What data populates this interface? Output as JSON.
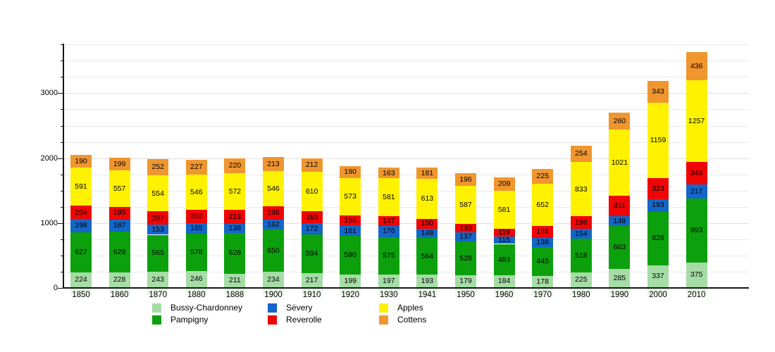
{
  "chart_data": {
    "type": "bar",
    "stacked": true,
    "title": "",
    "xlabel": "",
    "ylabel": "",
    "ylim": [
      0,
      3800
    ],
    "yticks": [
      0,
      1000,
      2000,
      3000
    ],
    "minor_tick_step": 250,
    "grid": true,
    "legend_position": "bottom",
    "categories": [
      "1850",
      "1860",
      "1870",
      "1880",
      "1888",
      "1900",
      "1910",
      "1920",
      "1930",
      "1941",
      "1950",
      "1960",
      "1970",
      "1980",
      "1990",
      "2000",
      "2010"
    ],
    "series": [
      {
        "name": "Bussy-Chardonney",
        "color": "#a6dca6",
        "values": [
          224,
          228,
          243,
          246,
          211,
          234,
          217,
          199,
          197,
          193,
          179,
          184,
          178,
          225,
          285,
          337,
          375
        ]
      },
      {
        "name": "Pampigny",
        "color": "#0ca10c",
        "values": [
          627,
          629,
          565,
          578,
          628,
          650,
          594,
          590,
          575,
          564,
          528,
          483,
          445,
          518,
          663,
          828,
          993
        ]
      },
      {
        "name": "Sévery",
        "color": "#1466c8",
        "values": [
          198,
          187,
          153,
          165,
          138,
          162,
          172,
          161,
          176,
          148,
          137,
          115,
          138,
          154,
          148,
          193,
          217
        ]
      },
      {
        "name": "Reverolle",
        "color": "#f00505",
        "values": [
          204,
          195,
          207,
          202,
          213,
          198,
          183,
          155,
          147,
          150,
          133,
          119,
          181,
          196,
          311,
          323,
          348
        ]
      },
      {
        "name": "Apples",
        "color": "#fff200",
        "values": [
          591,
          557,
          554,
          546,
          572,
          546,
          610,
          573,
          581,
          613,
          587,
          581,
          652,
          833,
          1021,
          1159,
          1257
        ]
      },
      {
        "name": "Cottens",
        "color": "#f0962f",
        "values": [
          190,
          199,
          252,
          227,
          220,
          213,
          212,
          190,
          163,
          181,
          196,
          209,
          225,
          254,
          260,
          343,
          436
        ]
      }
    ]
  }
}
